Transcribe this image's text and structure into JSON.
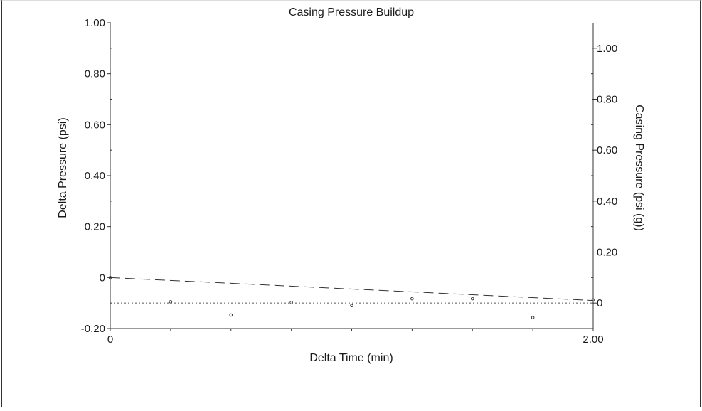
{
  "chart_data": {
    "type": "scatter",
    "title": "Casing Pressure Buildup",
    "xlabel": "Delta Time (min)",
    "ylabel": "Delta Pressure (psi)",
    "y2label": "Casing Pressure (psi (g))",
    "xlim": [
      0,
      2.0
    ],
    "ylim": [
      -0.2,
      1.0
    ],
    "y2lim": [
      -0.1,
      1.1
    ],
    "x_ticks": [
      "0",
      "2.00"
    ],
    "y_ticks": [
      {
        "value": -0.2,
        "label": "-0.20"
      },
      {
        "value": 0,
        "label": "0"
      },
      {
        "value": 0.2,
        "label": "0.20"
      },
      {
        "value": 0.4,
        "label": "0.40"
      },
      {
        "value": 0.6,
        "label": "0.60"
      },
      {
        "value": 0.8,
        "label": "0.80"
      },
      {
        "value": 1.0,
        "label": "1.00"
      }
    ],
    "y2_ticks": [
      {
        "value": 0,
        "label": "0"
      },
      {
        "value": 0.2,
        "label": "0.20"
      },
      {
        "value": 0.4,
        "label": "0.40"
      },
      {
        "value": 0.6,
        "label": "0.60"
      },
      {
        "value": 0.8,
        "label": "0.80"
      },
      {
        "value": 1.0,
        "label": "1.00"
      }
    ],
    "grid": false,
    "series": [
      {
        "style": "points",
        "color": "#333333",
        "points": [
          {
            "x": 0.0,
            "y": 0.0
          },
          {
            "x": 0.25,
            "y": -0.095
          },
          {
            "x": 0.5,
            "y": -0.147
          },
          {
            "x": 0.75,
            "y": -0.098
          },
          {
            "x": 1.0,
            "y": -0.11
          },
          {
            "x": 1.25,
            "y": -0.083
          },
          {
            "x": 1.5,
            "y": -0.083
          },
          {
            "x": 1.75,
            "y": -0.157
          },
          {
            "x": 2.0,
            "y": -0.088
          }
        ]
      },
      {
        "style": "dashed-line",
        "color": "#333333",
        "points": [
          {
            "x": 0.0,
            "y": 0.0
          },
          {
            "x": 2.0,
            "y": -0.09
          }
        ]
      },
      {
        "style": "dotted-line",
        "color": "#555555",
        "axis": "y2",
        "points": [
          {
            "x": 0.0,
            "y": 0.0
          },
          {
            "x": 2.0,
            "y": 0.0
          }
        ]
      }
    ]
  }
}
